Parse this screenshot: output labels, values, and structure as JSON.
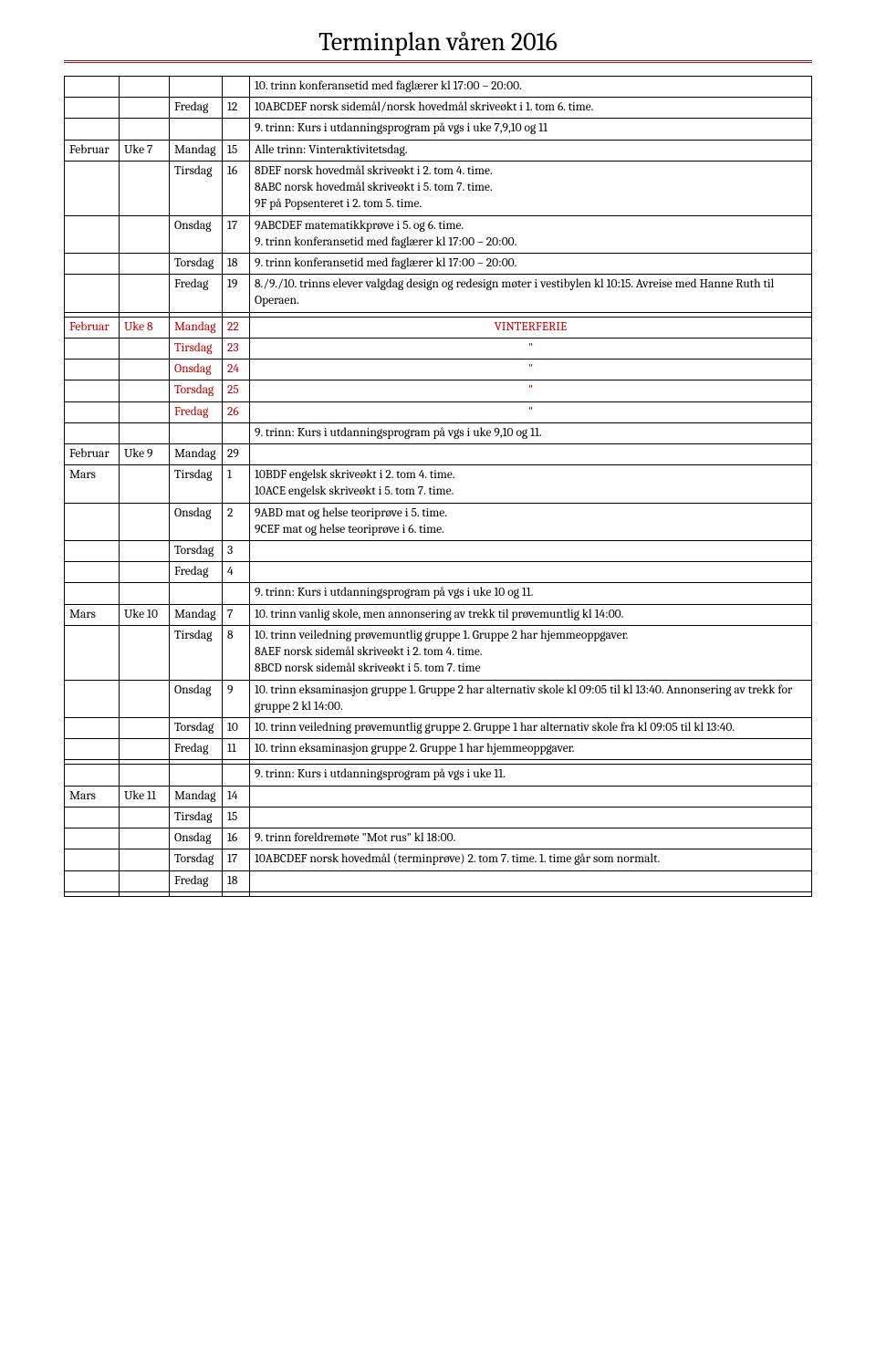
{
  "title": "Terminplan våren 2016",
  "colors": {
    "rule": "#8b1a1a",
    "red": "#c00000",
    "text": "#000000",
    "bg": "#ffffff"
  },
  "rows": [
    {
      "c1": "",
      "c2": "",
      "c3": "",
      "c4": "",
      "c5": "10. trinn konferansetid med faglærer kl 17:00 – 20:00."
    },
    {
      "c1": "",
      "c2": "",
      "c3": "Fredag",
      "c4": "12",
      "c5": "10ABCDEF norsk sidemål/norsk hovedmål skriveøkt i 1. tom 6. time."
    },
    {
      "c1": "",
      "c2": "",
      "c3": "",
      "c4": "",
      "c5": "9. trinn: Kurs i utdanningsprogram på vgs i uke 7,9,10 og 11"
    },
    {
      "c1": "Februar",
      "c2": "Uke 7",
      "c3": "Mandag",
      "c4": "15",
      "c5": "Alle trinn: Vinteraktivitetsdag."
    },
    {
      "c1": "",
      "c2": "",
      "c3": "Tirsdag",
      "c4": "16",
      "c5": "8DEF norsk hovedmål skriveøkt i 2. tom 4. time.\n8ABC norsk hovedmål skriveøkt i 5. tom 7. time.\n9F på Popsenteret i 2. tom 5. time."
    },
    {
      "c1": "",
      "c2": "",
      "c3": "Onsdag",
      "c4": "17",
      "c5": "9ABCDEF matematikkprøve i 5. og 6. time.\n9. trinn konferansetid med faglærer kl 17:00 – 20:00."
    },
    {
      "c1": "",
      "c2": "",
      "c3": "Torsdag",
      "c4": "18",
      "c5": "9. trinn konferansetid med faglærer kl 17:00 – 20:00."
    },
    {
      "c1": "",
      "c2": "",
      "c3": "Fredag",
      "c4": "19",
      "c5": "8./9./10. trinns elever valgdag design og redesign møter i vestibylen kl 10:15. Avreise med Hanne Ruth til Operaen."
    },
    {
      "c1": "",
      "c2": "",
      "c3": "",
      "c4": "",
      "c5": ""
    },
    {
      "c1": "Februar",
      "c2": "Uke 8",
      "c3": "Mandag",
      "c4": "22",
      "c5": "VINTERFERIE",
      "red": true,
      "center": true
    },
    {
      "c1": "",
      "c2": "",
      "c3": "Tirsdag",
      "c4": "23",
      "c5": "\"",
      "red": true,
      "center": true
    },
    {
      "c1": "",
      "c2": "",
      "c3": "Onsdag",
      "c4": "24",
      "c5": "\"",
      "red": true,
      "center": true
    },
    {
      "c1": "",
      "c2": "",
      "c3": "Torsdag",
      "c4": "25",
      "c5": "\"",
      "red": true,
      "center": true
    },
    {
      "c1": "",
      "c2": "",
      "c3": "Fredag",
      "c4": "26",
      "c5": "\"",
      "red": true,
      "center": true
    },
    {
      "c1": "",
      "c2": "",
      "c3": "",
      "c4": "",
      "c5": "9. trinn: Kurs i utdanningsprogram på vgs i uke 9,10 og 11."
    },
    {
      "c1": "Februar",
      "c2": "Uke 9",
      "c3": "Mandag",
      "c4": "29",
      "c5": ""
    },
    {
      "c1": "Mars",
      "c2": "",
      "c3": "Tirsdag",
      "c4": "1",
      "c5": "10BDF engelsk skriveøkt i 2. tom 4. time.\n10ACE engelsk skriveøkt i 5. tom 7. time."
    },
    {
      "c1": "",
      "c2": "",
      "c3": "Onsdag",
      "c4": "2",
      "c5": "9ABD mat og helse teoriprøve i 5. time.\n9CEF mat og helse teoriprøve i 6. time."
    },
    {
      "c1": "",
      "c2": "",
      "c3": "Torsdag",
      "c4": "3",
      "c5": ""
    },
    {
      "c1": "",
      "c2": "",
      "c3": "Fredag",
      "c4": "4",
      "c5": ""
    },
    {
      "c1": "",
      "c2": "",
      "c3": "",
      "c4": "",
      "c5": "9. trinn: Kurs i utdanningsprogram på vgs i uke 10 og 11."
    },
    {
      "c1": "Mars",
      "c2": "Uke 10",
      "c3": "Mandag",
      "c4": "7",
      "c5": "10. trinn vanlig skole, men annonsering av trekk til prøvemuntlig kl 14:00."
    },
    {
      "c1": "",
      "c2": "",
      "c3": "Tirsdag",
      "c4": "8",
      "c5": "10. trinn veiledning prøvemuntlig gruppe 1. Gruppe 2 har hjemmeoppgaver.\n8AEF norsk sidemål skriveøkt i 2. tom 4. time.\n8BCD norsk sidemål skriveøkt i 5. tom 7. time"
    },
    {
      "c1": "",
      "c2": "",
      "c3": "Onsdag",
      "c4": "9",
      "c5": "10. trinn eksaminasjon gruppe 1. Gruppe 2 har alternativ skole kl 09:05 til kl 13:40. Annonsering av trekk for gruppe 2 kl 14:00."
    },
    {
      "c1": "",
      "c2": "",
      "c3": "Torsdag",
      "c4": "10",
      "c5": "10. trinn veiledning prøvemuntlig gruppe 2. Gruppe 1 har alternativ skole fra kl 09:05 til kl 13:40."
    },
    {
      "c1": "",
      "c2": "",
      "c3": "Fredag",
      "c4": "11",
      "c5": "10. trinn eksaminasjon gruppe 2. Gruppe 1 har hjemmeoppgaver."
    },
    {
      "c1": "",
      "c2": "",
      "c3": "",
      "c4": "",
      "c5": ""
    },
    {
      "c1": "",
      "c2": "",
      "c3": "",
      "c4": "",
      "c5": "9. trinn: Kurs i utdanningsprogram på vgs i uke 11."
    },
    {
      "c1": "Mars",
      "c2": "Uke 11",
      "c3": "Mandag",
      "c4": "14",
      "c5": ""
    },
    {
      "c1": "",
      "c2": "",
      "c3": "Tirsdag",
      "c4": "15",
      "c5": ""
    },
    {
      "c1": "",
      "c2": "",
      "c3": "Onsdag",
      "c4": "16",
      "c5": "9. trinn foreldremøte \"Mot rus\" kl 18:00."
    },
    {
      "c1": "",
      "c2": "",
      "c3": "Torsdag",
      "c4": "17",
      "c5": "10ABCDEF norsk hovedmål (terminprøve) 2. tom 7. time. 1. time går som normalt."
    },
    {
      "c1": "",
      "c2": "",
      "c3": "Fredag",
      "c4": "18",
      "c5": ""
    },
    {
      "c1": "",
      "c2": "",
      "c3": "",
      "c4": "",
      "c5": ""
    }
  ]
}
